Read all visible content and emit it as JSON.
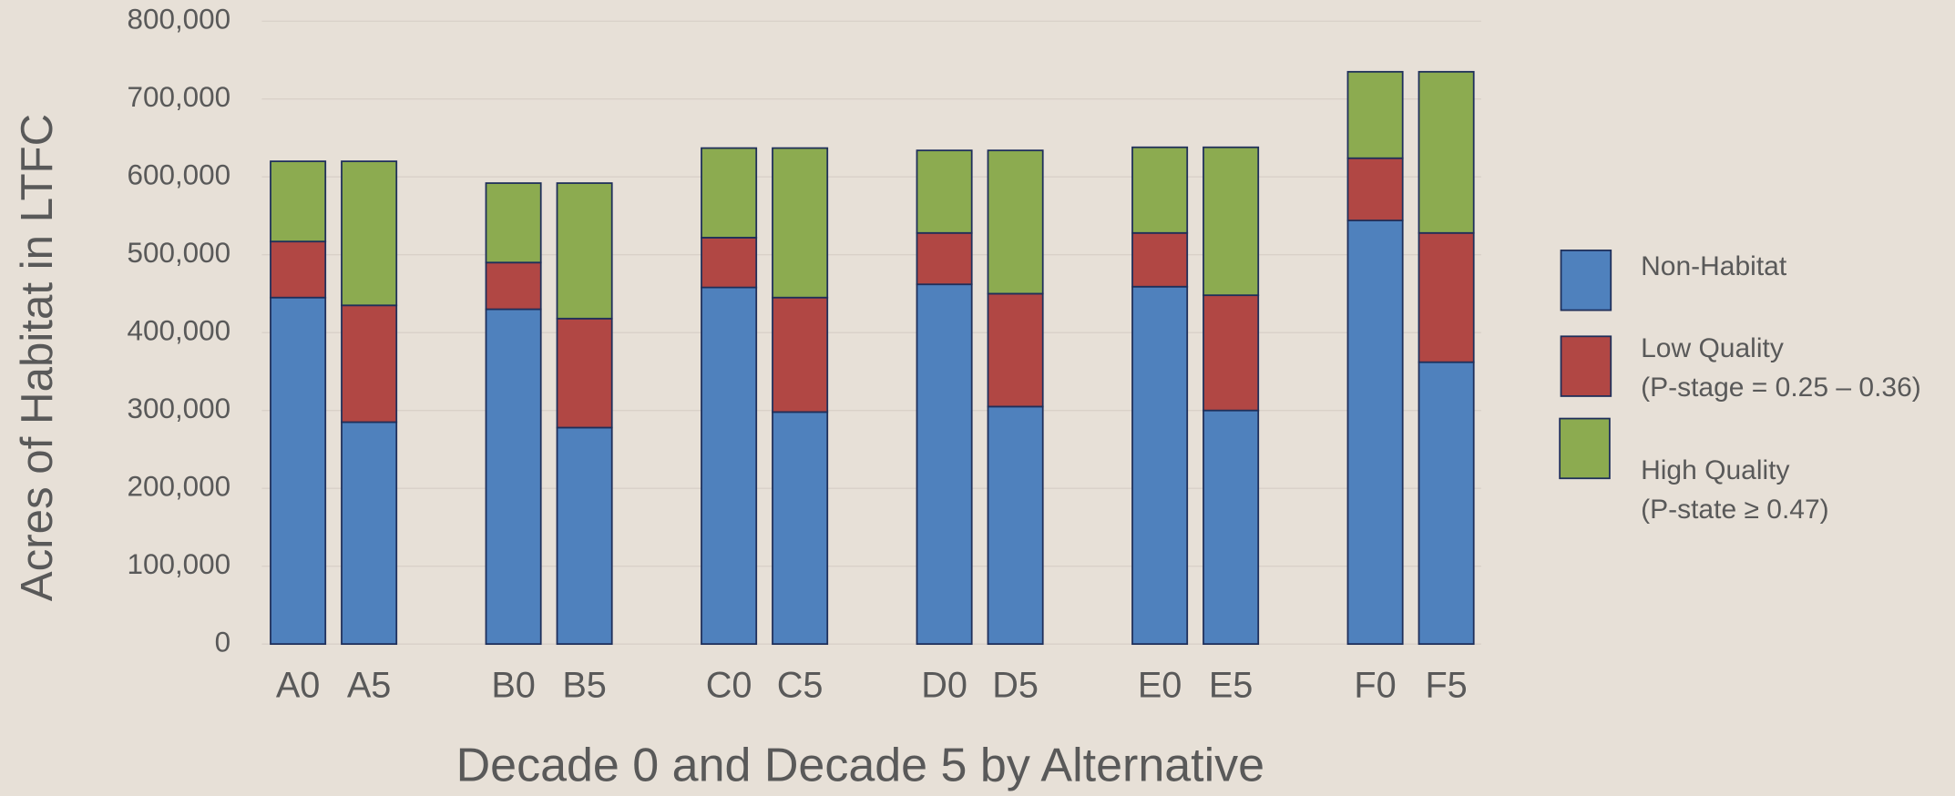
{
  "chart_data": {
    "type": "stacked-bar",
    "x_label": "Decade 0 and Decade 5 by Alternative",
    "y_label": "Acres of Habitat in LTFC",
    "categories": [
      "A0",
      "A5",
      "B0",
      "B5",
      "C0",
      "C5",
      "D0",
      "D5",
      "E0",
      "E5",
      "F0",
      "F5"
    ],
    "series": [
      {
        "name": "Non-Habitat",
        "color": "#4f81bd",
        "values": [
          445000,
          285000,
          430000,
          278000,
          458000,
          298000,
          462000,
          305000,
          459000,
          300000,
          544000,
          362000
        ]
      },
      {
        "name": "Low Quality\n(P-stage = 0.25 – 0.36)",
        "color": "#b14744",
        "values": [
          72000,
          150000,
          60000,
          140000,
          64000,
          147000,
          66000,
          145000,
          69000,
          148000,
          80000,
          166000
        ]
      },
      {
        "name": "High Quality\n(P-state ≥ 0.47)",
        "color": "#8cab50",
        "values": [
          103000,
          185000,
          102000,
          174000,
          115000,
          192000,
          106000,
          184000,
          110000,
          190000,
          111000,
          207000
        ]
      }
    ],
    "ylim": [
      0,
      800000
    ],
    "yticks": [
      {
        "value": 0,
        "label": "0"
      },
      {
        "value": 100000,
        "label": "100,000"
      },
      {
        "value": 200000,
        "label": "200,000"
      },
      {
        "value": 300000,
        "label": "300,000"
      },
      {
        "value": 400000,
        "label": "400,000"
      },
      {
        "value": 500000,
        "label": "500,000"
      },
      {
        "value": 600000,
        "label": "600,000"
      },
      {
        "value": 700000,
        "label": "700,000"
      },
      {
        "value": 800000,
        "label": "800,000"
      }
    ],
    "grid": true,
    "legend": "right"
  }
}
